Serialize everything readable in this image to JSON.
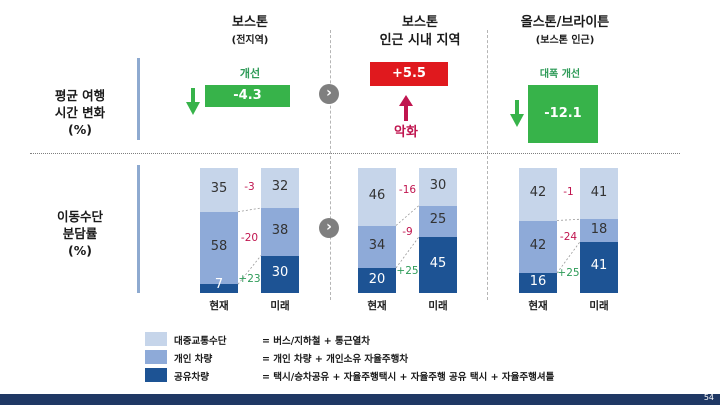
{
  "columns": [
    {
      "title": "보스톤",
      "subtitle": "(전지역)"
    },
    {
      "title": "보스톤",
      "subtitle": "인근 시내 지역"
    },
    {
      "title": "올스톤/브라이튼",
      "subtitle": "(보스톤 인근)"
    }
  ],
  "rows": {
    "travel_time": "평균 여행\n시간 변화\n(%)",
    "mode_share": "이동수단\n분담률\n(%)"
  },
  "travel_changes": [
    {
      "value": "-4.3",
      "tag": "개선"
    },
    {
      "value": "+5.5",
      "tag": "악화"
    },
    {
      "value": "-12.1",
      "tag": "대폭 개선"
    }
  ],
  "colors": {
    "light": "#c6d5ea",
    "mid": "#8eaad8",
    "dark": "#1d5394",
    "green": "#37b34a",
    "red": "#e0191e",
    "accent_red": "#c0154f",
    "accent_green": "#2e9b58",
    "footer": "#1f3864"
  },
  "chart_data": {
    "type": "bar",
    "stacked": true,
    "groups": [
      {
        "categories": [
          "현재",
          "미래"
        ],
        "series": [
          {
            "name": "대중교통수단",
            "values": [
              35,
              32
            ]
          },
          {
            "name": "개인 차량",
            "values": [
              58,
              38
            ]
          },
          {
            "name": "공유차량",
            "values": [
              7,
              30
            ]
          }
        ],
        "diffs": [
          "-3",
          "-20",
          "+23"
        ]
      },
      {
        "categories": [
          "현재",
          "미래"
        ],
        "series": [
          {
            "name": "대중교통수단",
            "values": [
              46,
              30
            ]
          },
          {
            "name": "개인 차량",
            "values": [
              34,
              25
            ]
          },
          {
            "name": "공유차량",
            "values": [
              20,
              45
            ]
          }
        ],
        "diffs": [
          "-16",
          "-9",
          "+25"
        ]
      },
      {
        "categories": [
          "현재",
          "미래"
        ],
        "series": [
          {
            "name": "대중교통수단",
            "values": [
              42,
              41
            ]
          },
          {
            "name": "개인 차량",
            "values": [
              42,
              18
            ]
          },
          {
            "name": "공유차량",
            "values": [
              16,
              41
            ]
          }
        ],
        "diffs": [
          "-1",
          "-24",
          "+25"
        ]
      }
    ]
  },
  "legend": [
    {
      "name": "대중교통수단",
      "desc": "= 버스/지하철 + 통근열차"
    },
    {
      "name": "개인 차량",
      "desc": "= 개인 차량 + 개인소유 자율주행차"
    },
    {
      "name": "공유차량",
      "desc": "= 택시/승차공유 + 자율주행택시 + 자율주행 공유 택시 + 자율주행셔틀"
    }
  ],
  "page_number": "54"
}
